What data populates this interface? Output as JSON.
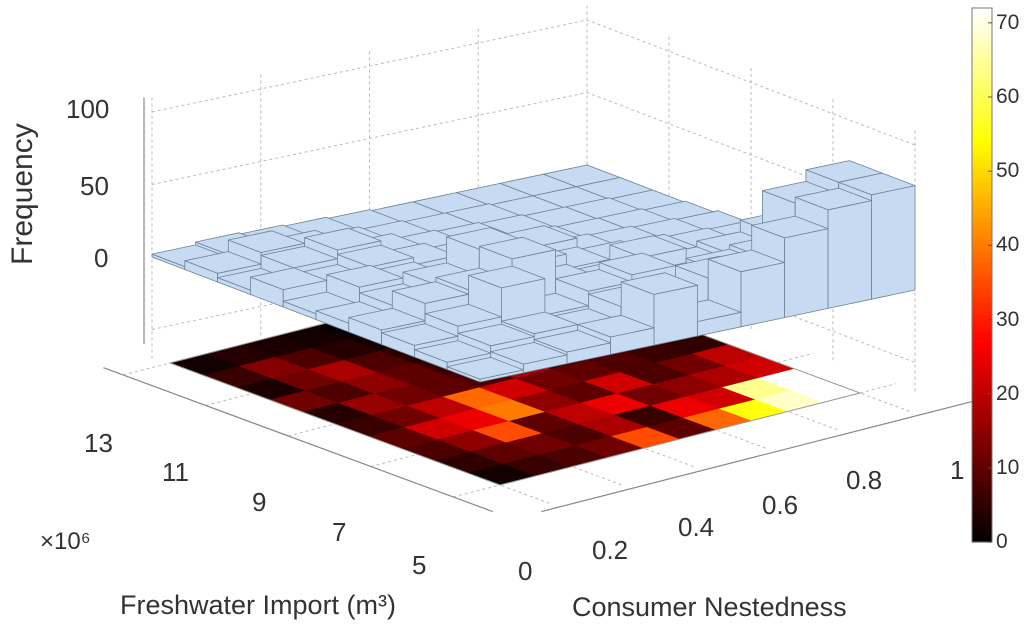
{
  "chart_data": {
    "type": "bar3d_heatmap",
    "zlabel": "Frequency",
    "xlabel": "Consumer Nestedness",
    "ylabel": "Freshwater Import (m³)",
    "y_multiplier": "×10⁶",
    "z_ticks": [
      "100",
      "50",
      "0"
    ],
    "x_ticks": [
      "0",
      "0.2",
      "0.4",
      "0.6",
      "0.8",
      "1"
    ],
    "y_ticks": [
      "13",
      "11",
      "9",
      "7",
      "5"
    ],
    "xlim": [
      0,
      1
    ],
    "ylim": [
      5,
      13
    ],
    "zlim": [
      0,
      100
    ],
    "colorbar": {
      "colormap": "hot",
      "range": [
        0,
        72
      ],
      "ticks": [
        "0",
        "10",
        "20",
        "30",
        "40",
        "50",
        "60",
        "70"
      ]
    },
    "bar_color": "#c6dbf2",
    "values_rows_front_to_back": [
      [
        2,
        6,
        8,
        12,
        35,
        10,
        38,
        55,
        68,
        72
      ],
      [
        5,
        10,
        12,
        8,
        18,
        6,
        25,
        22,
        64,
        72
      ],
      [
        8,
        15,
        35,
        10,
        20,
        25,
        12,
        15,
        18,
        22
      ],
      [
        10,
        22,
        25,
        40,
        15,
        10,
        22,
        8,
        12,
        20
      ],
      [
        6,
        12,
        20,
        38,
        22,
        12,
        10,
        8,
        6,
        5
      ],
      [
        4,
        16,
        12,
        10,
        8,
        18,
        6,
        5,
        4,
        3
      ],
      [
        12,
        8,
        15,
        10,
        6,
        4,
        3,
        2,
        2,
        1
      ],
      [
        3,
        12,
        18,
        8,
        4,
        3,
        2,
        1,
        1,
        0
      ],
      [
        6,
        14,
        8,
        4,
        2,
        1,
        1,
        0,
        0,
        0
      ],
      [
        2,
        4,
        3,
        2,
        1,
        0,
        0,
        0,
        0,
        0
      ]
    ]
  }
}
